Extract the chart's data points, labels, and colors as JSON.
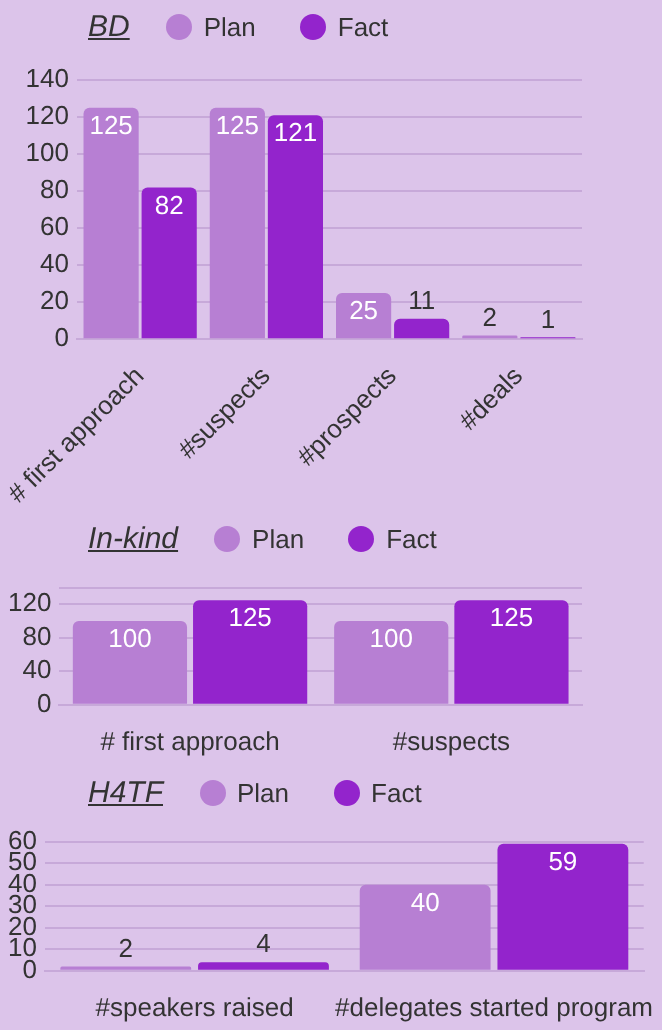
{
  "chart_data": [
    {
      "type": "bar",
      "title": "BD",
      "categories": [
        "# first approach",
        "#suspects",
        "#prospects",
        "#deals"
      ],
      "series": [
        {
          "name": "Plan",
          "color": "#b77fd3",
          "values": [
            125,
            125,
            25,
            2
          ]
        },
        {
          "name": "Fact",
          "color": "#9324cc",
          "values": [
            82,
            121,
            11,
            1
          ]
        }
      ],
      "ylim": [
        0,
        140
      ],
      "yticks": [
        0,
        20,
        40,
        60,
        80,
        100,
        120,
        140
      ],
      "grid": "y",
      "legend": "top",
      "data_labels": true
    },
    {
      "type": "bar",
      "title": "In-kind",
      "categories": [
        "# first approach",
        "#suspects"
      ],
      "series": [
        {
          "name": "Plan",
          "color": "#b77fd3",
          "values": [
            100,
            100
          ]
        },
        {
          "name": "Fact",
          "color": "#9324cc",
          "values": [
            125,
            125
          ]
        }
      ],
      "ylim": [
        0,
        140
      ],
      "yticks": [
        0,
        40,
        80,
        120,
        {
          "value": 140,
          "label": null
        }
      ],
      "grid": "y",
      "legend": "top",
      "data_labels": true
    },
    {
      "type": "bar",
      "title": "H4TF",
      "categories": [
        "#speakers raised",
        "#delegates started program"
      ],
      "series": [
        {
          "name": "Plan",
          "color": "#b77fd3",
          "values": [
            2,
            40
          ]
        },
        {
          "name": "Fact",
          "color": "#9324cc",
          "values": [
            4,
            59
          ]
        }
      ],
      "ylim": [
        0,
        60
      ],
      "yticks": [
        0,
        10,
        20,
        30,
        40,
        50,
        60
      ],
      "grid": "y",
      "legend": "top",
      "data_labels": true
    }
  ]
}
